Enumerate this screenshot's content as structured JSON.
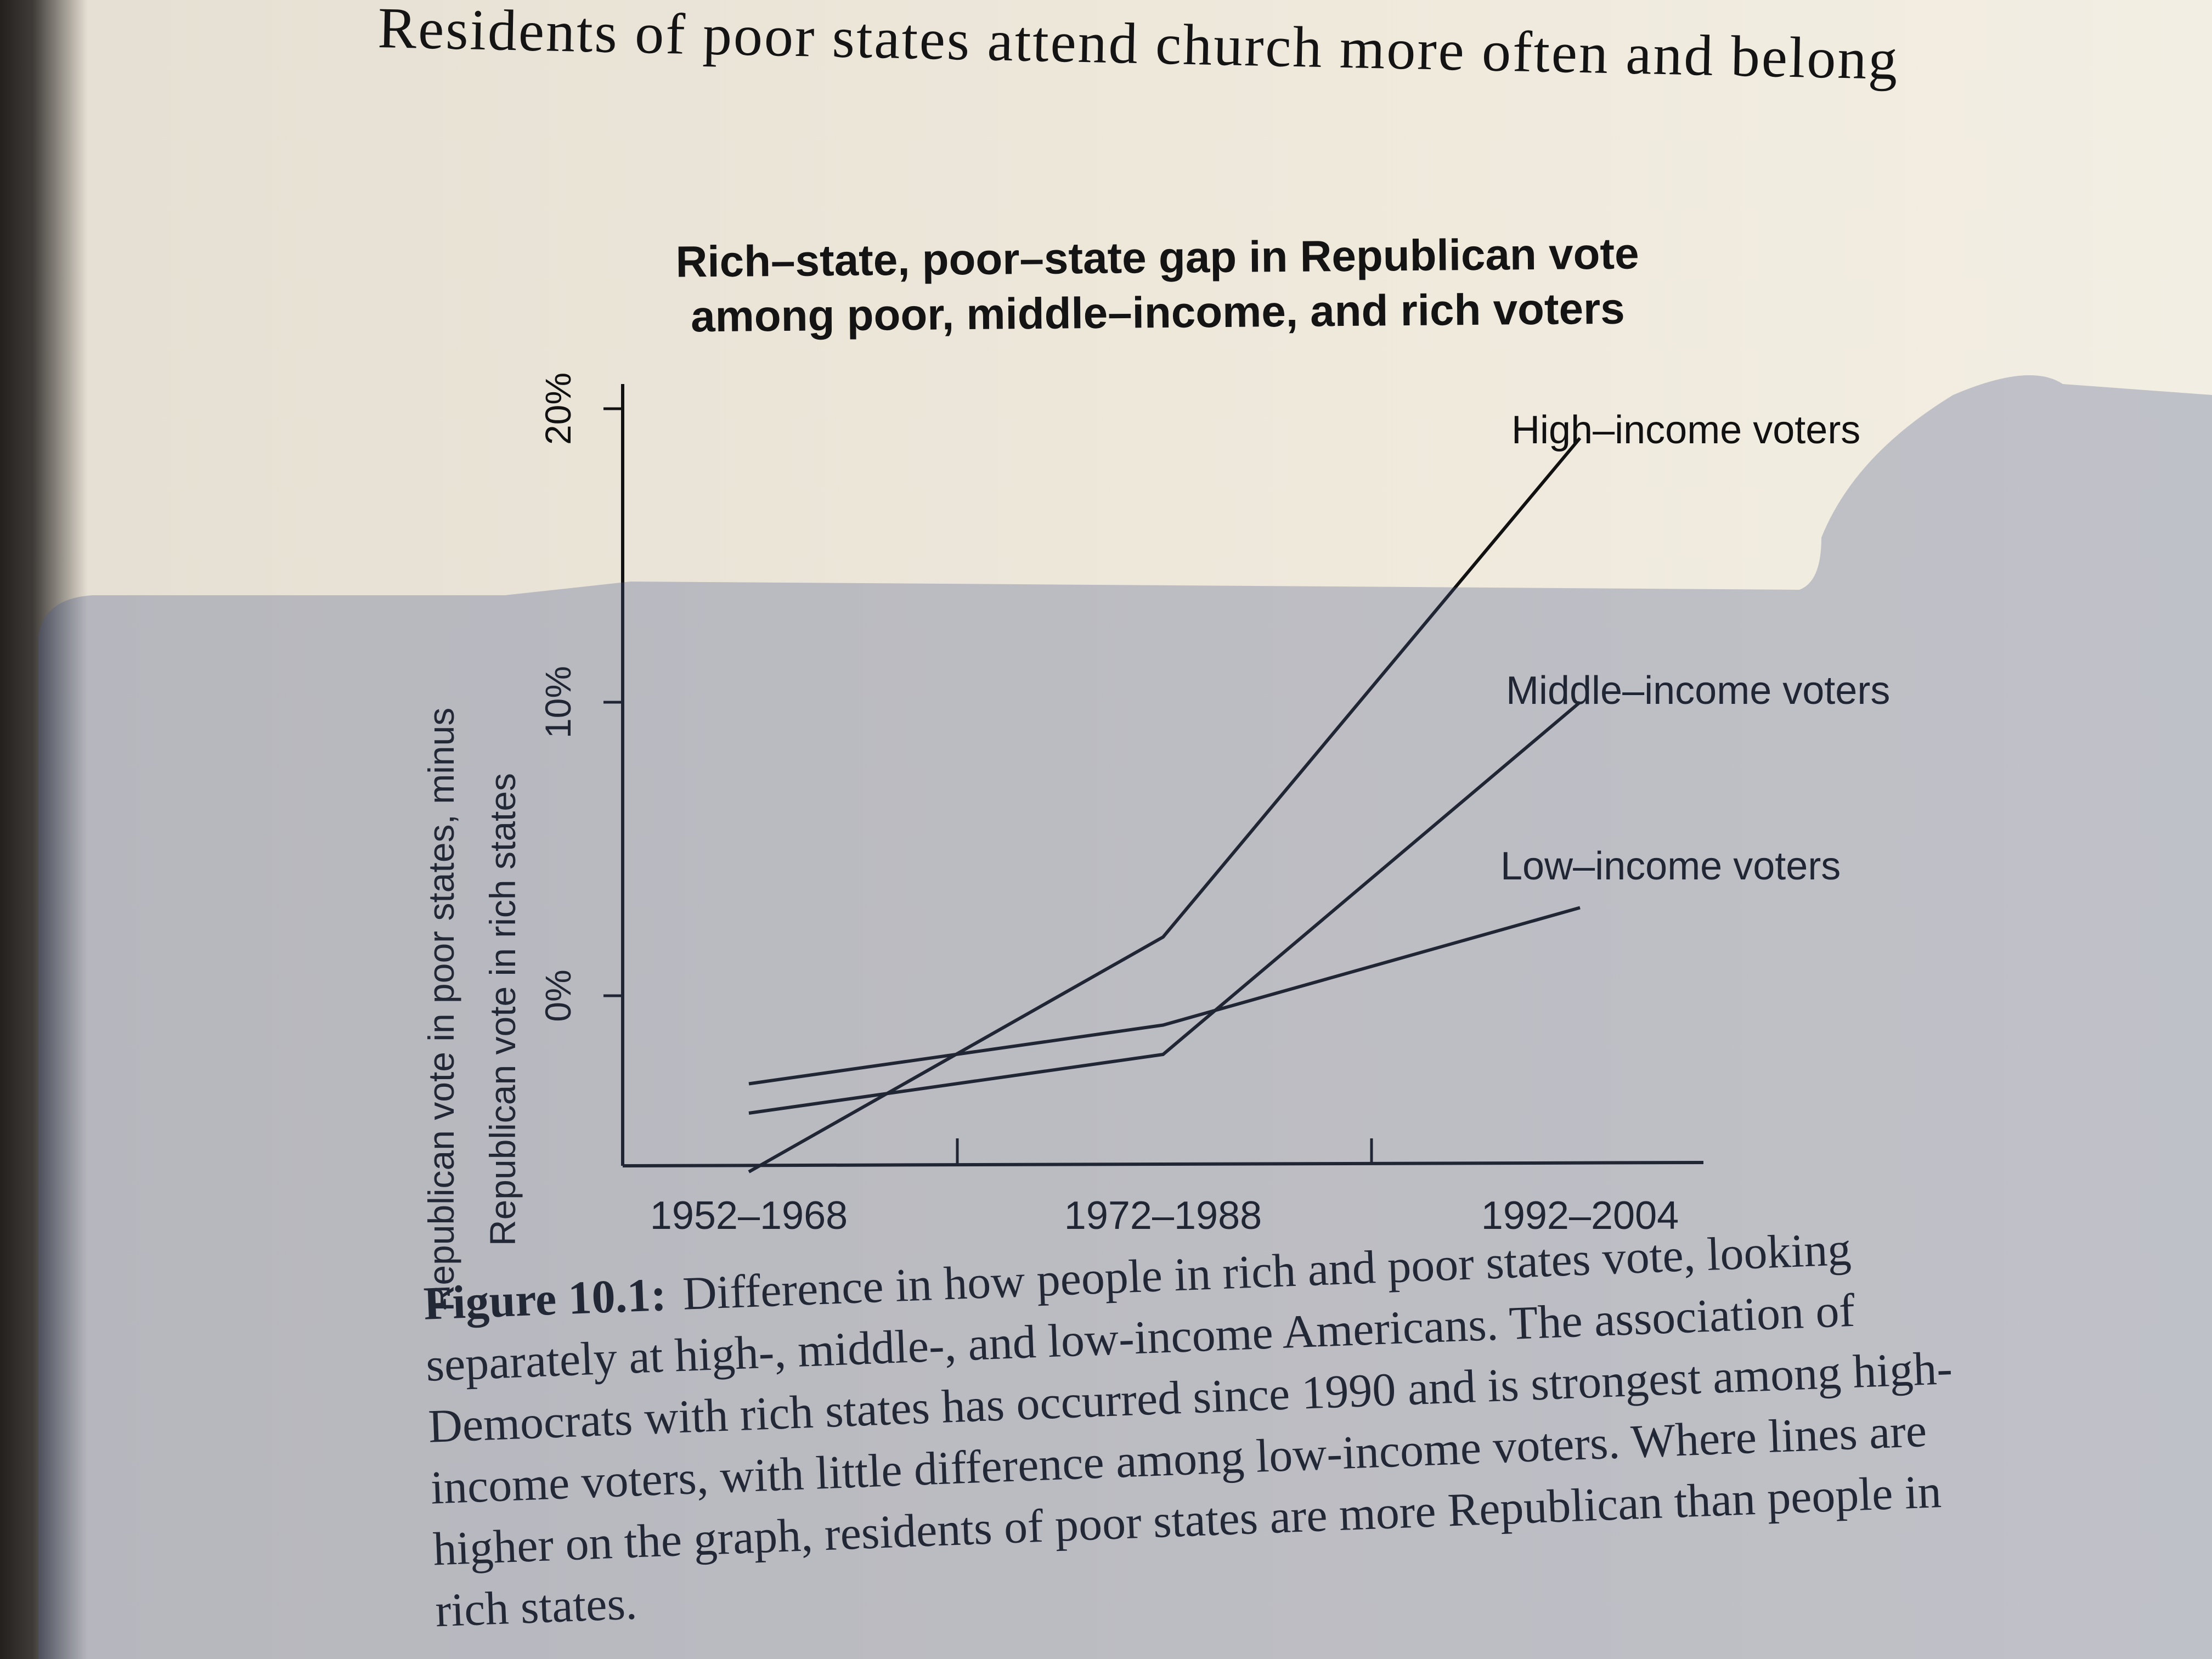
{
  "page": {
    "running_head": "Residents of poor states attend church more often and belong"
  },
  "caption": {
    "label": "Figure 10.1:",
    "text": "Difference in how people in rich and poor states vote, looking separately at high-, middle-, and low-income Americans. The association of Democrats with rich states has occurred since 1990 and is strongest among high-income voters, with little difference among low-income voters. Where lines are higher on the graph, residents of poor states are more Republican than people in rich states."
  },
  "chart_data": {
    "type": "line",
    "title": [
      "Rich–state, poor–state gap in Republican vote",
      "among poor, middle–income, and rich voters"
    ],
    "ylabel": [
      "Republican vote in poor states, minus",
      "Republican vote in rich states"
    ],
    "xlabel": "",
    "categories": [
      "1952–1968",
      "1972–1988",
      "1992–2004"
    ],
    "ylim": [
      -6,
      22
    ],
    "yticks": [
      {
        "value": 0,
        "label": "0%"
      },
      {
        "value": 10,
        "label": "10%"
      },
      {
        "value": 20,
        "label": "20%"
      }
    ],
    "series": [
      {
        "name": "High–income voters",
        "values": [
          -6,
          2,
          19
        ]
      },
      {
        "name": "Middle–income voters",
        "values": [
          -4,
          -2,
          10
        ]
      },
      {
        "name": "Low–income voters",
        "values": [
          -3,
          -1,
          3
        ]
      }
    ],
    "grid": false,
    "legend": "inline labels at line ends",
    "line_color": "#111111"
  }
}
